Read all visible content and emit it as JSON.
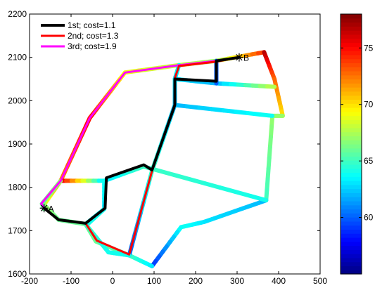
{
  "chart_data": {
    "type": "line",
    "title": "",
    "xlabel": "",
    "ylabel": "",
    "xlim": [
      -200,
      500
    ],
    "ylim": [
      1600,
      2200
    ],
    "xticks": [
      -200,
      -100,
      0,
      100,
      200,
      300,
      400,
      500
    ],
    "yticks": [
      1600,
      1700,
      1800,
      1900,
      2000,
      2100,
      2200
    ],
    "grid": false,
    "legend_position": "top-left",
    "network_color_scale": {
      "range": [
        55,
        78
      ],
      "colormap": "jet"
    },
    "network": [
      {
        "points": [
          [
            -165,
            1760
          ],
          [
            -125,
            1815
          ],
          [
            -55,
            1960
          ],
          [
            30,
            2065
          ],
          [
            160,
            2082
          ],
          [
            250,
            2092
          ],
          [
            365,
            2112
          ]
        ],
        "values": [
          68,
          72,
          75,
          69,
          68,
          67,
          74
        ]
      },
      {
        "points": [
          [
            365,
            2112
          ],
          [
            390,
            2050
          ],
          [
            410,
            1965
          ]
        ],
        "values": [
          77,
          73,
          70
        ]
      },
      {
        "points": [
          [
            410,
            1965
          ],
          [
            385,
            1965
          ],
          [
            370,
            1770
          ]
        ],
        "values": [
          67,
          67,
          65
        ]
      },
      {
        "points": [
          [
            370,
            1770
          ],
          [
            220,
            1720
          ],
          [
            165,
            1708
          ],
          [
            95,
            1618
          ]
        ],
        "values": [
          62,
          63,
          64,
          59
        ]
      },
      {
        "points": [
          [
            95,
            1618
          ],
          [
            40,
            1643
          ],
          [
            -40,
            1675
          ],
          [
            -65,
            1715
          ],
          [
            -130,
            1725
          ],
          [
            -165,
            1760
          ]
        ],
        "values": [
          63,
          65,
          66,
          66,
          66,
          67
        ]
      },
      {
        "points": [
          [
            -125,
            1815
          ],
          [
            -20,
            1815
          ]
        ],
        "values": [
          76,
          63
        ]
      },
      {
        "points": [
          [
            -20,
            1815
          ],
          [
            75,
            1848
          ],
          [
            370,
            1770
          ]
        ],
        "values": [
          63,
          65,
          64
        ]
      },
      {
        "points": [
          [
            160,
            2082
          ],
          [
            150,
            2050
          ],
          [
            150,
            1990
          ],
          [
            385,
            1965
          ]
        ],
        "values": [
          64,
          63,
          62,
          64
        ]
      },
      {
        "points": [
          [
            150,
            2050
          ],
          [
            250,
            2040
          ],
          [
            390,
            2032
          ]
        ],
        "values": [
          63,
          62,
          68
        ]
      },
      {
        "points": [
          [
            250,
            2092
          ],
          [
            250,
            2040
          ]
        ],
        "values": [
          60,
          60
        ]
      },
      {
        "points": [
          [
            150,
            1990
          ],
          [
            95,
            1838
          ],
          [
            40,
            1643
          ]
        ],
        "values": [
          62,
          65,
          60
        ]
      },
      {
        "points": [
          [
            -20,
            1815
          ],
          [
            -20,
            1750
          ],
          [
            -65,
            1715
          ]
        ],
        "values": [
          64,
          63,
          64
        ]
      },
      {
        "points": [
          [
            -65,
            1715
          ],
          [
            -10,
            1650
          ],
          [
            40,
            1643
          ]
        ],
        "values": [
          65,
          64,
          64
        ]
      },
      {
        "points": [
          [
            -20,
            1750
          ],
          [
            -60,
            1715
          ]
        ],
        "values": [
          64,
          64
        ]
      },
      {
        "points": [
          [
            -125,
            1815
          ],
          [
            -170,
            1762
          ],
          [
            -165,
            1750
          ]
        ],
        "values": [
          67,
          66,
          66
        ]
      }
    ],
    "series": [
      {
        "name": "1st;  cost=1.1",
        "color": "#000000",
        "points": [
          [
            -165,
            1752
          ],
          [
            -130,
            1725
          ],
          [
            -65,
            1717
          ],
          [
            -18,
            1752
          ],
          [
            -15,
            1822
          ],
          [
            75,
            1852
          ],
          [
            95,
            1840
          ],
          [
            150,
            1990
          ],
          [
            150,
            2050
          ],
          [
            250,
            2045
          ],
          [
            250,
            2092
          ],
          [
            305,
            2100
          ]
        ]
      },
      {
        "name": "2nd;  cost=1.3",
        "color": "#ff0000",
        "points": [
          [
            -165,
            1752
          ],
          [
            -130,
            1725
          ],
          [
            -65,
            1717
          ],
          [
            -38,
            1677
          ],
          [
            40,
            1645
          ],
          [
            95,
            1838
          ],
          [
            150,
            1990
          ],
          [
            150,
            2052
          ],
          [
            160,
            2080
          ],
          [
            250,
            2090
          ],
          [
            305,
            2100
          ]
        ]
      },
      {
        "name": "3rd;  cost=1.9",
        "color": "#ff00ff",
        "points": [
          [
            -165,
            1752
          ],
          [
            -172,
            1762
          ],
          [
            -125,
            1815
          ],
          [
            -55,
            1960
          ],
          [
            30,
            2065
          ],
          [
            160,
            2082
          ],
          [
            250,
            2092
          ],
          [
            305,
            2100
          ]
        ]
      }
    ],
    "markers": [
      {
        "label": "A",
        "x": -165,
        "y": 1752
      },
      {
        "label": "B",
        "x": 305,
        "y": 2100
      }
    ],
    "colorbar": {
      "range": [
        55,
        78
      ],
      "ticks": [
        60,
        65,
        70,
        75
      ]
    }
  }
}
